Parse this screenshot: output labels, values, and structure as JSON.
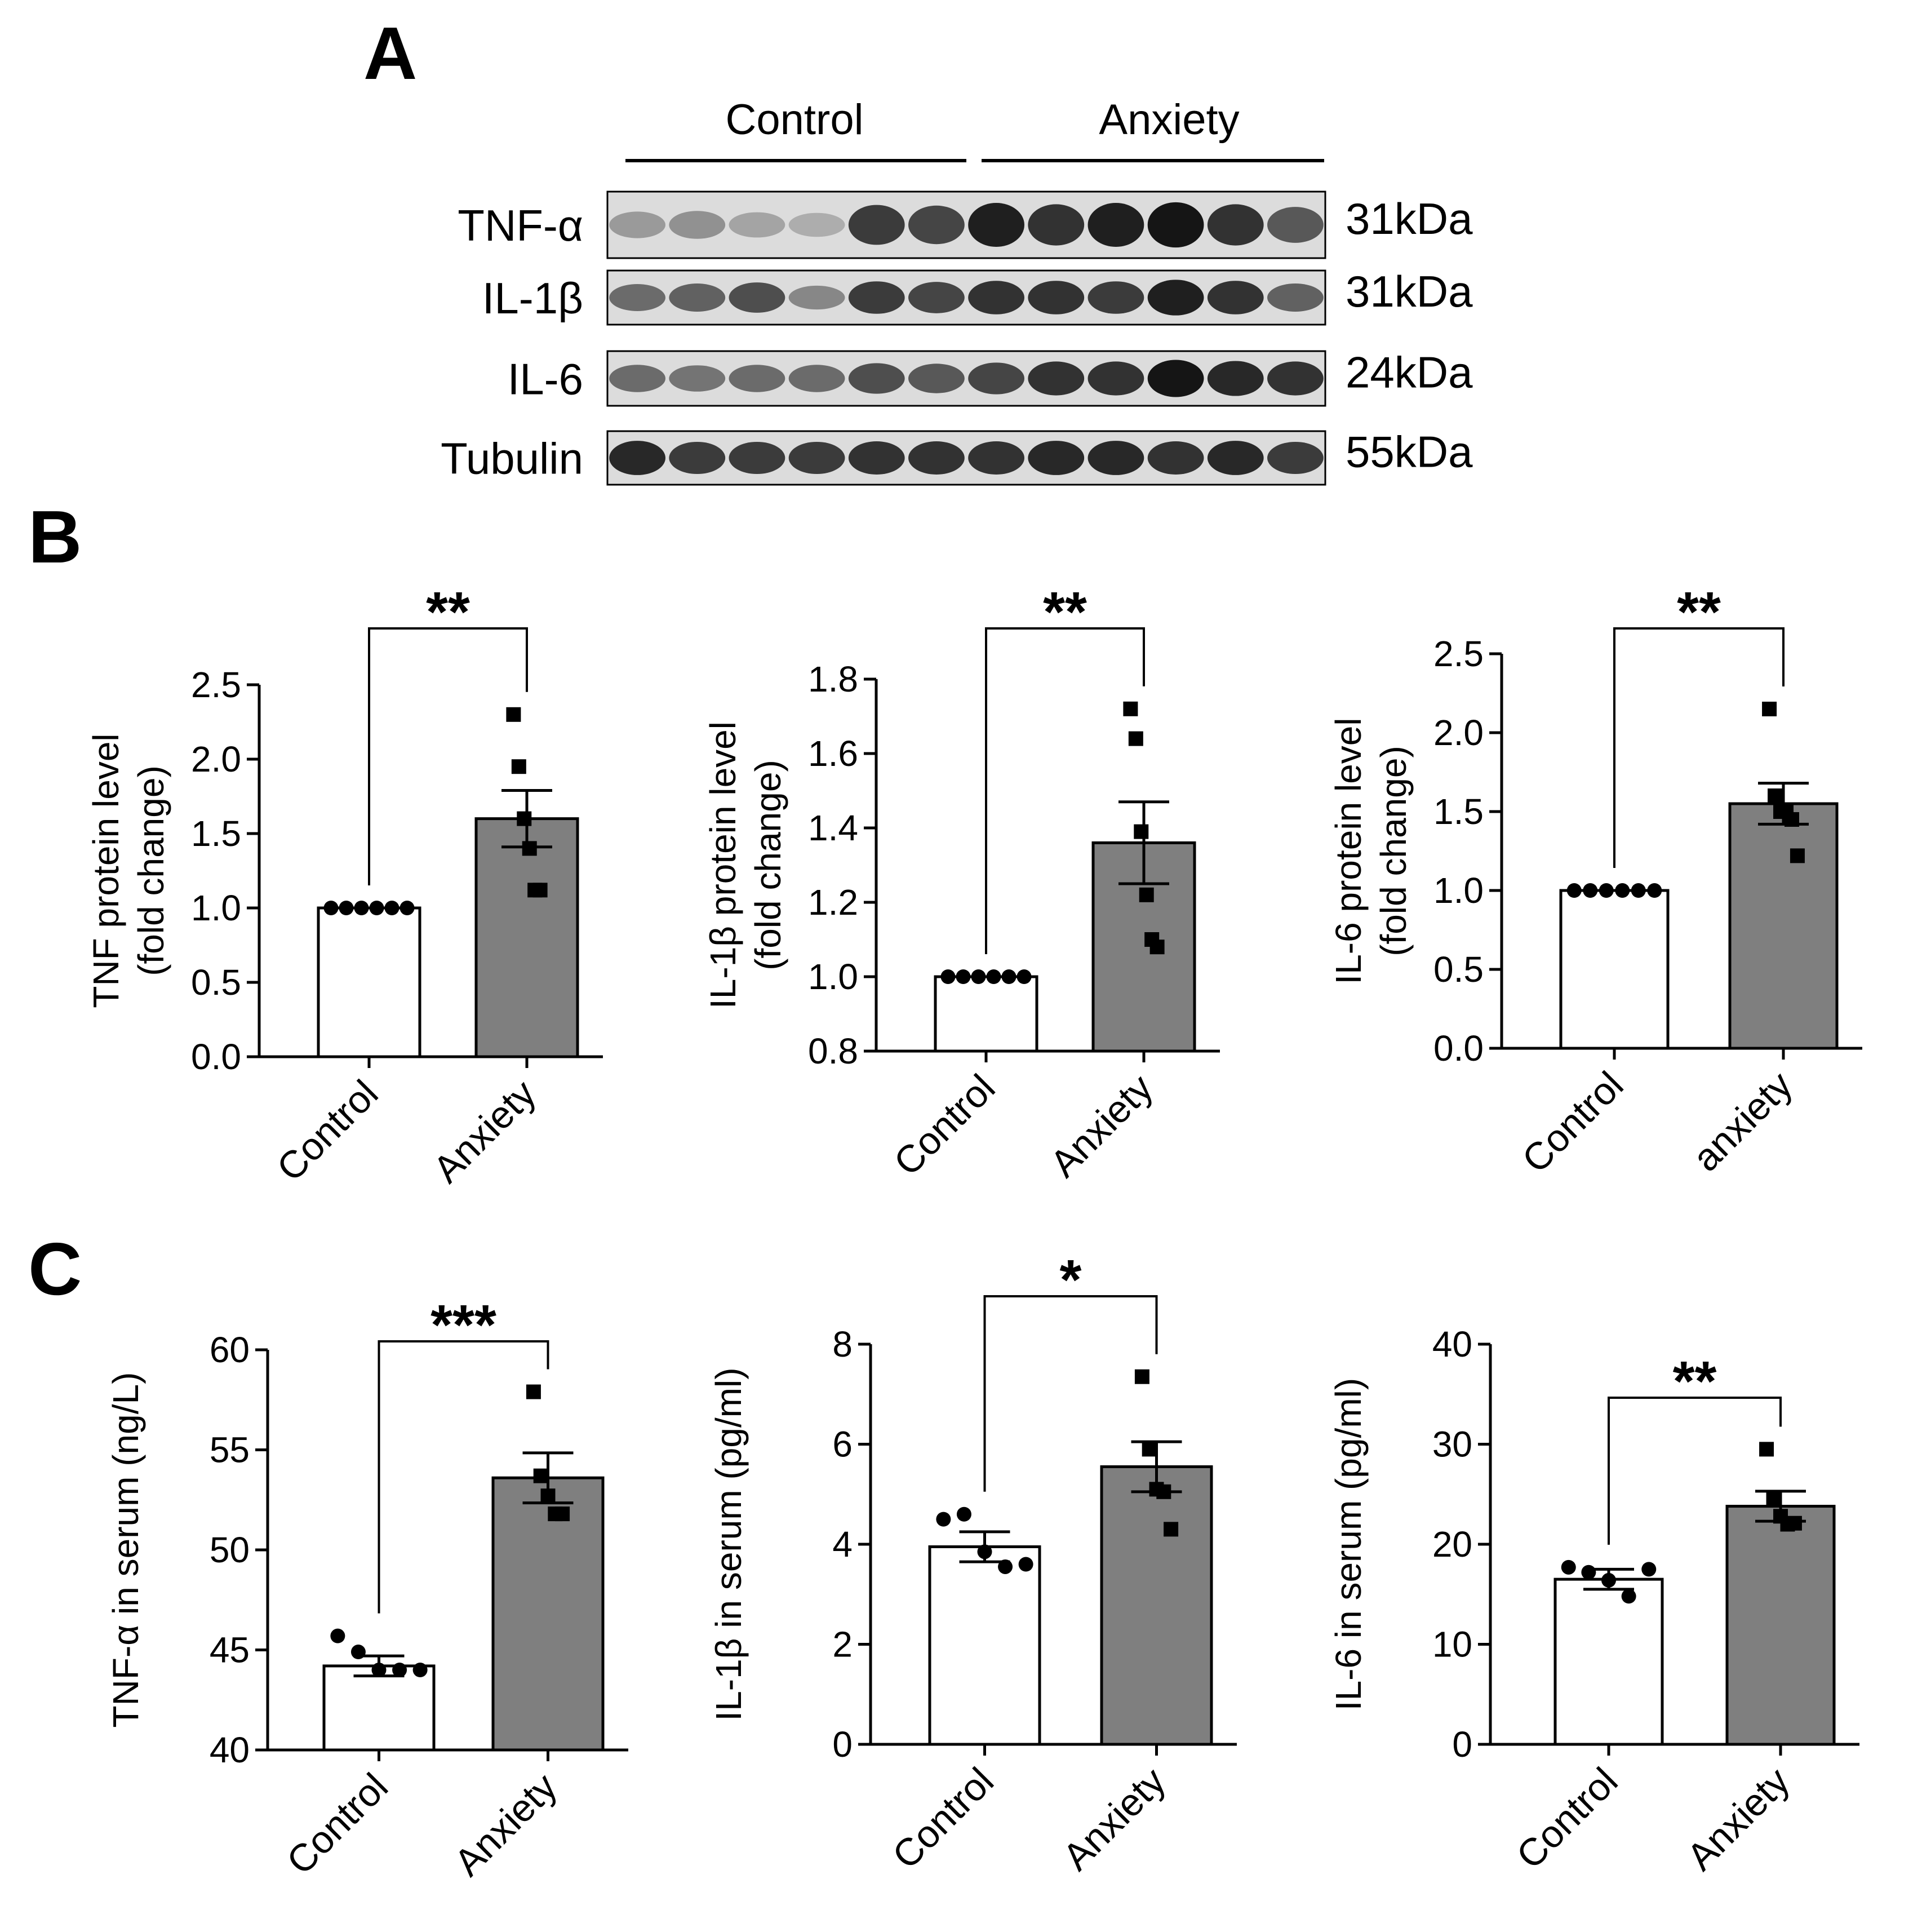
{
  "colors": {
    "control": "#ffffff",
    "anxiety": "#7f7f7f",
    "ink": "#000000"
  },
  "panels": {
    "a": "A",
    "b": "B",
    "c": "C"
  },
  "blot": {
    "groups": [
      "Control",
      "Anxiety"
    ],
    "lanes_per_group": 6,
    "rows": [
      {
        "protein": "TNF-α",
        "size": "31kDa",
        "intensities": [
          0.3,
          0.35,
          0.25,
          0.2,
          0.8,
          0.75,
          0.95,
          0.85,
          0.95,
          1.0,
          0.85,
          0.65
        ]
      },
      {
        "protein": "IL-1β",
        "size": "31kDa",
        "intensities": [
          0.55,
          0.6,
          0.7,
          0.4,
          0.8,
          0.75,
          0.85,
          0.85,
          0.8,
          0.95,
          0.85,
          0.6
        ]
      },
      {
        "protein": "IL-6",
        "size": "24kDa",
        "intensities": [
          0.55,
          0.5,
          0.55,
          0.55,
          0.7,
          0.65,
          0.75,
          0.85,
          0.85,
          1.0,
          0.9,
          0.85
        ]
      },
      {
        "protein": "Tubulin",
        "size": "55kDa",
        "intensities": [
          0.9,
          0.8,
          0.8,
          0.8,
          0.85,
          0.85,
          0.85,
          0.9,
          0.9,
          0.85,
          0.9,
          0.8
        ]
      }
    ]
  },
  "chart_data": [
    {
      "type": "bar",
      "panel": "B",
      "ylabel_lines": [
        "TNF protein level",
        "(fold change)"
      ],
      "categories": [
        "Control",
        "Anxiety"
      ],
      "values": [
        1.0,
        1.6
      ],
      "sem": [
        0,
        0.19
      ],
      "points": [
        [
          1.0,
          1.0,
          1.0,
          1.0,
          1.0,
          1.0
        ],
        [
          2.3,
          1.95,
          1.6,
          1.4,
          1.12,
          1.12
        ]
      ],
      "ylim": [
        0,
        2.5
      ],
      "yticks": [
        "0.0",
        "0.5",
        "1.0",
        "1.5",
        "2.0",
        "2.5"
      ],
      "significance": "**"
    },
    {
      "type": "bar",
      "panel": "B",
      "ylabel_lines": [
        "IL-1β protein level",
        "(fold change)"
      ],
      "categories": [
        "Control",
        "Anxiety"
      ],
      "values": [
        1.0,
        1.36
      ],
      "sem": [
        0,
        0.11
      ],
      "points": [
        [
          1.0,
          1.0,
          1.0,
          1.0,
          1.0,
          1.0
        ],
        [
          1.72,
          1.64,
          1.39,
          1.22,
          1.1,
          1.08
        ]
      ],
      "ylim": [
        0.8,
        1.8
      ],
      "yticks": [
        "0.8",
        "1.0",
        "1.2",
        "1.4",
        "1.6",
        "1.8"
      ],
      "significance": "**"
    },
    {
      "type": "bar",
      "panel": "B",
      "ylabel_lines": [
        "IL-6 protein level",
        "(fold change)"
      ],
      "categories": [
        "Control",
        "anxiety"
      ],
      "values": [
        1.0,
        1.55
      ],
      "sem": [
        0,
        0.13
      ],
      "points": [
        [
          1.0,
          1.0,
          1.0,
          1.0,
          1.0,
          1.0
        ],
        [
          2.15,
          1.6,
          1.5,
          1.5,
          1.45,
          1.22
        ]
      ],
      "ylim": [
        0,
        2.5
      ],
      "yticks": [
        "0.0",
        "0.5",
        "1.0",
        "1.5",
        "2.0",
        "2.5"
      ],
      "significance": "**"
    },
    {
      "type": "bar",
      "panel": "C",
      "ylabel_lines": [
        "TNF-α in serum (ng/L)"
      ],
      "categories": [
        "Control",
        "Anxiety"
      ],
      "values": [
        44.2,
        53.6
      ],
      "sem": [
        0.5,
        1.25
      ],
      "points": [
        [
          45.7,
          44.9,
          44.0,
          44.0,
          44.0
        ],
        [
          57.9,
          53.7,
          52.7,
          51.8,
          51.8
        ]
      ],
      "ylim": [
        40,
        60
      ],
      "yticks": [
        "40",
        "45",
        "50",
        "55",
        "60"
      ],
      "significance": "***"
    },
    {
      "type": "bar",
      "panel": "C",
      "ylabel_lines": [
        "IL-1β in serum (pg/ml)"
      ],
      "categories": [
        "Control",
        "Anxiety"
      ],
      "values": [
        3.95,
        5.55
      ],
      "sem": [
        0.3,
        0.5
      ],
      "points": [
        [
          4.5,
          4.6,
          3.85,
          3.55,
          3.6
        ],
        [
          7.35,
          5.9,
          5.1,
          5.05,
          4.3
        ]
      ],
      "ylim": [
        0,
        8
      ],
      "yticks": [
        "0",
        "2",
        "4",
        "6",
        "8"
      ],
      "significance": "*"
    },
    {
      "type": "bar",
      "panel": "C",
      "ylabel_lines": [
        "IL-6 in serum (pg/ml)"
      ],
      "categories": [
        "Control",
        "Anxiety"
      ],
      "values": [
        16.5,
        23.8
      ],
      "sem": [
        1.0,
        1.5
      ],
      "points": [
        [
          17.7,
          17.2,
          16.4,
          14.8,
          17.5
        ],
        [
          29.5,
          24.5,
          22.8,
          22.0,
          22.1
        ]
      ],
      "ylim": [
        0,
        40
      ],
      "yticks": [
        "0",
        "10",
        "20",
        "30",
        "40"
      ],
      "significance": "**"
    }
  ]
}
